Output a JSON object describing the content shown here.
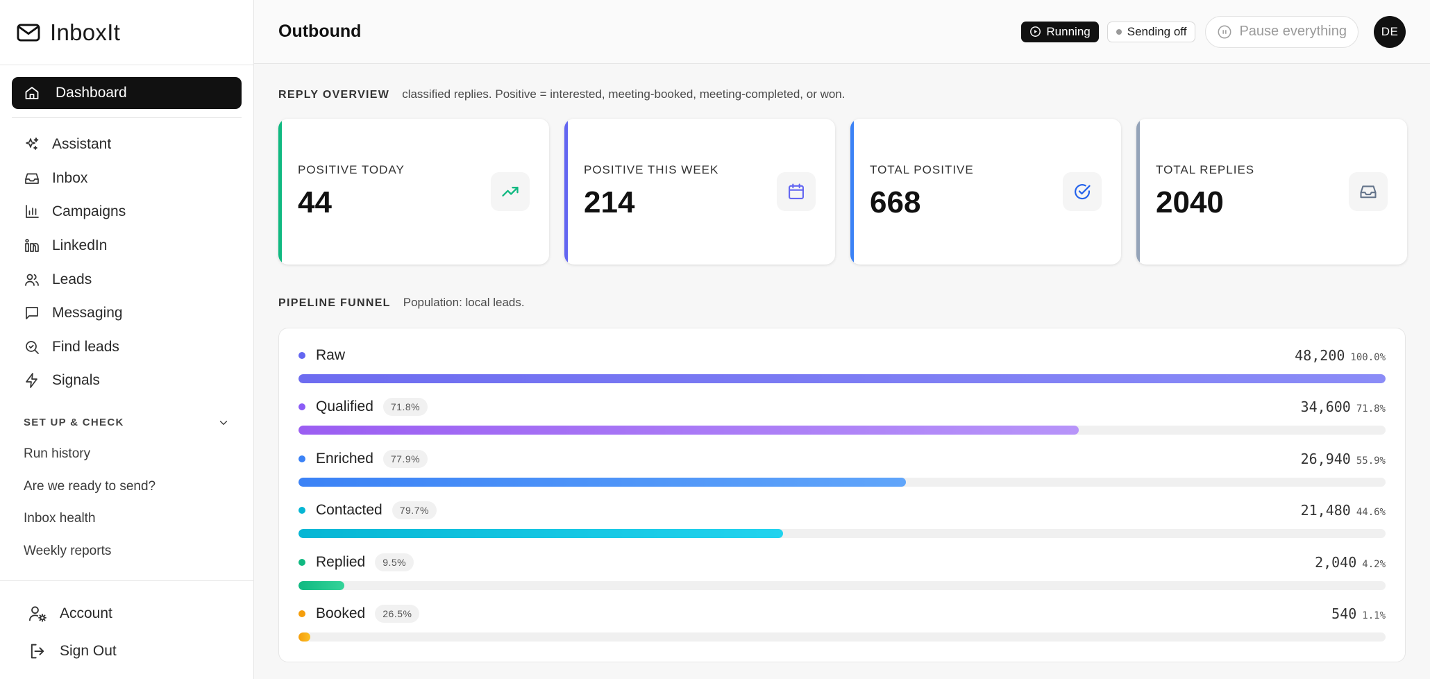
{
  "app": {
    "name": "InboxIt"
  },
  "sidebar": {
    "active": {
      "label": "Dashboard",
      "icon": "home-icon"
    },
    "items": [
      {
        "label": "Assistant",
        "icon": "sparkles-icon"
      },
      {
        "label": "Inbox",
        "icon": "inbox-icon"
      },
      {
        "label": "Campaigns",
        "icon": "bar-chart-icon"
      },
      {
        "label": "LinkedIn",
        "icon": "linkedin-icon"
      },
      {
        "label": "Leads",
        "icon": "users-icon"
      },
      {
        "label": "Messaging",
        "icon": "message-square-icon"
      },
      {
        "label": "Find leads",
        "icon": "search-icon"
      },
      {
        "label": "Signals",
        "icon": "zap-icon"
      }
    ],
    "setup": {
      "title": "SET UP & CHECK",
      "items": [
        "Run history",
        "Are we ready to send?",
        "Inbox health",
        "Weekly reports"
      ]
    },
    "bottom": [
      {
        "label": "Account",
        "icon": "user-gear-icon"
      },
      {
        "label": "Sign Out",
        "icon": "log-out-icon"
      }
    ]
  },
  "header": {
    "title": "Outbound",
    "running_label": "Running",
    "sending_label": "Sending off",
    "pause_label": "Pause everything",
    "avatar_initials": "DE"
  },
  "reply_overview": {
    "title": "REPLY OVERVIEW",
    "description": "classified replies. Positive = interested, meeting-booked, meeting-completed, or won.",
    "cards": [
      {
        "label": "POSITIVE TODAY",
        "value": "44",
        "icon": "trending-up-icon",
        "accent": "#10b981",
        "icon_color": "#10b981"
      },
      {
        "label": "POSITIVE THIS WEEK",
        "value": "214",
        "icon": "calendar-icon",
        "accent": "#6366f1",
        "icon_color": "#6366f1"
      },
      {
        "label": "TOTAL POSITIVE",
        "value": "668",
        "icon": "check-circle-icon",
        "accent": "#3b82f6",
        "icon_color": "#2563eb"
      },
      {
        "label": "TOTAL REPLIES",
        "value": "2040",
        "icon": "inbox-icon",
        "accent": "#94a3b8",
        "icon_color": "#64748b"
      }
    ]
  },
  "pipeline_funnel": {
    "title": "PIPELINE FUNNEL",
    "description": "Population: local leads.",
    "stages": [
      {
        "name": "Raw",
        "badge": "",
        "count": "48,200",
        "percent": "100.0%",
        "fraction": 1.0,
        "color": "#6366f1",
        "fill_from": "#6d6cf0",
        "fill_to": "#8b8cf7"
      },
      {
        "name": "Qualified",
        "badge": "71.8%",
        "count": "34,600",
        "percent": "71.8%",
        "fraction": 0.718,
        "color": "#8b5cf6",
        "fill_from": "#9b5ef2",
        "fill_to": "#b794f9"
      },
      {
        "name": "Enriched",
        "badge": "77.9%",
        "count": "26,940",
        "percent": "55.9%",
        "fraction": 0.559,
        "color": "#3b82f6",
        "fill_from": "#3b82f6",
        "fill_to": "#60a5fa"
      },
      {
        "name": "Contacted",
        "badge": "79.7%",
        "count": "21,480",
        "percent": "44.6%",
        "fraction": 0.446,
        "color": "#06b6d4",
        "fill_from": "#06b6d4",
        "fill_to": "#22d3ee"
      },
      {
        "name": "Replied",
        "badge": "9.5%",
        "count": "2,040",
        "percent": "4.2%",
        "fraction": 0.042,
        "color": "#10b981",
        "fill_from": "#10b981",
        "fill_to": "#34d399"
      },
      {
        "name": "Booked",
        "badge": "26.5%",
        "count": "540",
        "percent": "1.1%",
        "fraction": 0.011,
        "color": "#f59e0b",
        "fill_from": "#f59e0b",
        "fill_to": "#fbbf24"
      }
    ]
  }
}
